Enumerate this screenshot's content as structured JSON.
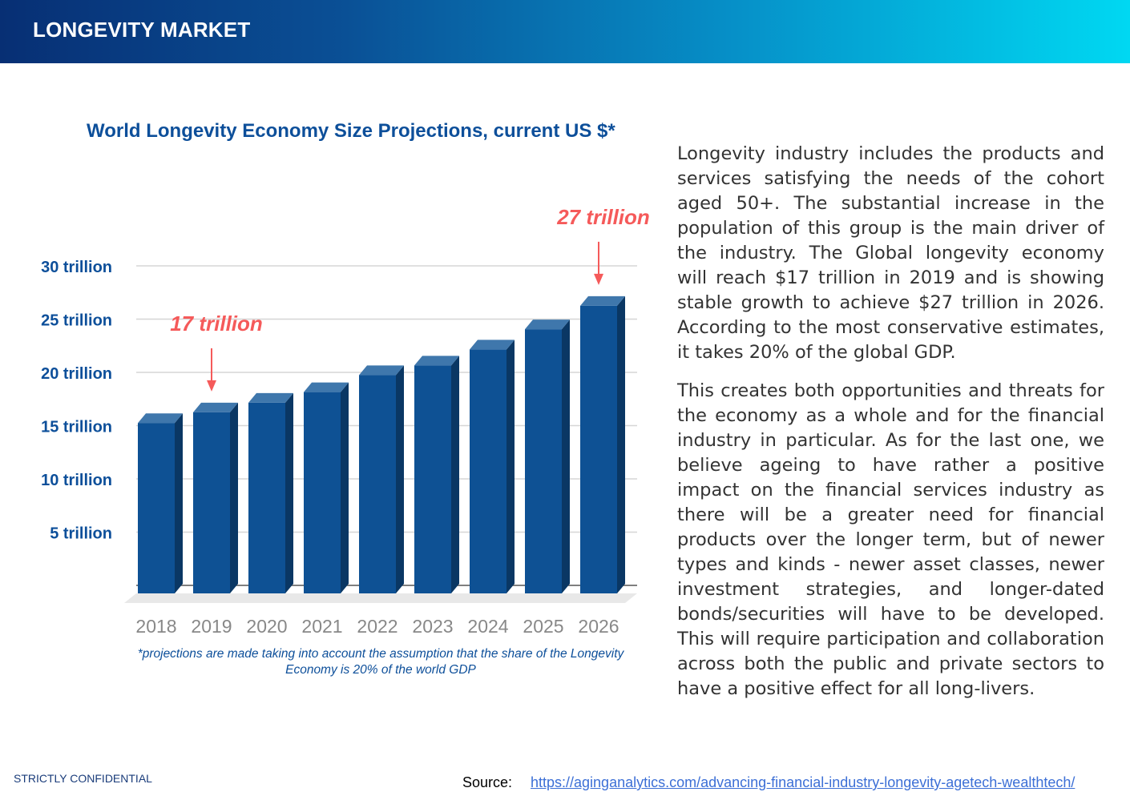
{
  "header": {
    "title": "LONGEVITY MARKET"
  },
  "chart_data": {
    "type": "bar",
    "title": "World Longevity Economy Size Projections, current US $*",
    "categories": [
      "2018",
      "2019",
      "2020",
      "2021",
      "2022",
      "2023",
      "2024",
      "2025",
      "2026"
    ],
    "values": [
      16,
      17,
      17.9,
      18.9,
      20.5,
      21.4,
      22.9,
      24.8,
      27
    ],
    "unit": "trillion US $",
    "y_ticks": [
      5,
      10,
      15,
      20,
      25,
      30
    ],
    "y_tick_labels": [
      "5 trillion",
      "10 trillion",
      "15 trillion",
      "20 trillion",
      "25 trillion",
      "30 trillion"
    ],
    "ylim": [
      0,
      30
    ],
    "grid": true,
    "annotations": [
      {
        "category": "2019",
        "text": "17 trillion"
      },
      {
        "category": "2026",
        "text": "27 trillion"
      }
    ],
    "colors": {
      "bar": "#0e5194",
      "bar_top": "#3f77ac",
      "bar_side": "#0a3764",
      "annotation": "#f55a5a"
    },
    "note": "*projections  are made taking into account the assumption that the share of the Longevity Economy is 20% of the world GDP"
  },
  "body": {
    "paragraphs": [
      "Longevity industry includes the products and services satisfying the needs of the cohort aged 50+. The substantial increase in the population of this group is the main driver of the industry. The Global longevity economy will reach $17 trillion in 2019 and is showing stable growth to achieve $27 trillion in 2026. According to the most conservative estimates, it takes 20% of the global GDP.",
      "This creates both opportunities and threats for the economy as a whole and for the financial industry in particular. As for the last one, we believe ageing to have rather a positive impact on the financial services industry as there will be a greater need for financial products over the longer term, but of newer types and kinds - newer asset classes, newer investment strategies, and longer-dated bonds/securities will have to be developed. This will require participation and collaboration across both the public and private sectors to have a positive effect for all long-livers."
    ]
  },
  "footer": {
    "confidential": "STRICTLY CONFIDENTIAL",
    "source_label": "Source:",
    "source_url": "https://aginganalytics.com/advancing-financial-industry-longevity-agetech-wealthtech/"
  }
}
